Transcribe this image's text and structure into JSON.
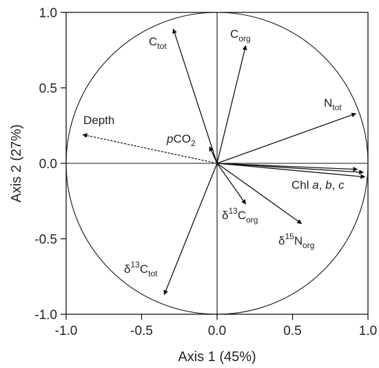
{
  "chart_data": {
    "type": "scatter",
    "subtype": "pca-correlation-circle",
    "xlabel": "Axis 1 (45%)",
    "ylabel": "Axis 2 (27%)",
    "xlim": [
      -1.0,
      1.0
    ],
    "ylim": [
      -1.0,
      1.0
    ],
    "x_ticks": [
      -1.0,
      -0.5,
      0.0,
      0.5,
      1.0
    ],
    "y_ticks": [
      -1.0,
      -0.5,
      0.0,
      0.5,
      1.0
    ],
    "x_tick_labels": [
      "-1.0",
      "-0.5",
      "0.0",
      "0.5",
      "1.0"
    ],
    "y_tick_labels": [
      "-1.0",
      "-0.5",
      "0.0",
      "0.5",
      "1.0"
    ],
    "grid": false,
    "unit_circle": true,
    "vectors": [
      {
        "id": "ctot",
        "label_parts": [
          {
            "t": "C"
          },
          {
            "t": "tot",
            "s": "sub"
          }
        ],
        "x": -0.29,
        "y": 0.89,
        "style": "solid"
      },
      {
        "id": "corg",
        "label_parts": [
          {
            "t": "C"
          },
          {
            "t": "org",
            "s": "sub"
          }
        ],
        "x": 0.19,
        "y": 0.78,
        "style": "solid"
      },
      {
        "id": "ntot",
        "label_parts": [
          {
            "t": "N"
          },
          {
            "t": "tot",
            "s": "sub"
          }
        ],
        "x": 0.92,
        "y": 0.33,
        "style": "solid"
      },
      {
        "id": "depth",
        "label_parts": [
          {
            "t": "Depth"
          }
        ],
        "x": -0.89,
        "y": 0.19,
        "style": "dashed"
      },
      {
        "id": "pco2",
        "label_parts": [
          {
            "t": "p",
            "s": "italic"
          },
          {
            "t": "CO"
          },
          {
            "t": "2",
            "s": "sub"
          }
        ],
        "x": -0.05,
        "y": 0.11,
        "style": "solid"
      },
      {
        "id": "chl1",
        "label_parts": [],
        "x": 0.93,
        "y": -0.04,
        "style": "solid"
      },
      {
        "id": "chl2",
        "label_parts": [],
        "x": 0.97,
        "y": -0.06,
        "style": "solid"
      },
      {
        "id": "chl3",
        "label_parts": [
          {
            "t": "Chl "
          },
          {
            "t": "a",
            "s": "italic"
          },
          {
            "t": ", "
          },
          {
            "t": "b",
            "s": "italic"
          },
          {
            "t": ", "
          },
          {
            "t": "c",
            "s": "italic"
          }
        ],
        "x": 0.98,
        "y": -0.09,
        "style": "solid"
      },
      {
        "id": "d13corg",
        "label_parts": [
          {
            "t": "δ"
          },
          {
            "t": "13",
            "s": "sup"
          },
          {
            "t": "C"
          },
          {
            "t": "org",
            "s": "sub"
          }
        ],
        "x": 0.19,
        "y": -0.27,
        "style": "solid"
      },
      {
        "id": "d15norg",
        "label_parts": [
          {
            "t": "δ"
          },
          {
            "t": "15",
            "s": "sup"
          },
          {
            "t": "N"
          },
          {
            "t": "org",
            "s": "sub"
          }
        ],
        "x": 0.56,
        "y": -0.4,
        "style": "solid"
      },
      {
        "id": "d13ctot",
        "label_parts": [
          {
            "t": "δ"
          },
          {
            "t": "13",
            "s": "sup"
          },
          {
            "t": "C"
          },
          {
            "t": "tot",
            "s": "sub"
          }
        ],
        "x": -0.35,
        "y": -0.87,
        "style": "solid"
      }
    ]
  }
}
